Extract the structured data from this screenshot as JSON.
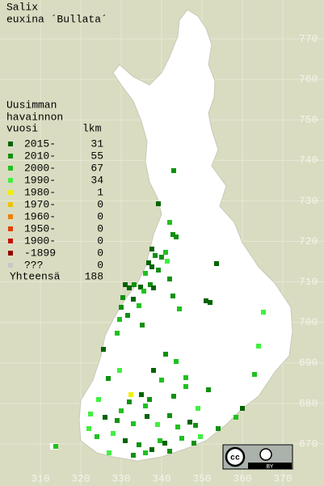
{
  "title": [
    "Salix",
    "euxina ´Bullata´"
  ],
  "legend": {
    "header": [
      "Uusimman",
      "havainnon"
    ],
    "col_year": "vuosi",
    "col_count": "lkm",
    "rows": [
      {
        "label": "2015-",
        "count": 31,
        "color": "#006400"
      },
      {
        "label": "2010-",
        "count": 55,
        "color": "#109010"
      },
      {
        "label": "2000-",
        "count": 67,
        "color": "#20c020"
      },
      {
        "label": "1990-",
        "count": 34,
        "color": "#40f040"
      },
      {
        "label": "1980-",
        "count": 1,
        "color": "#f0f000"
      },
      {
        "label": "1970-",
        "count": 0,
        "color": "#f0c000"
      },
      {
        "label": "1960-",
        "count": 0,
        "color": "#f08000"
      },
      {
        "label": "1950-",
        "count": 0,
        "color": "#e04000"
      },
      {
        "label": "1900-",
        "count": 0,
        "color": "#c01000"
      },
      {
        "label": "-1899",
        "count": 0,
        "color": "#900000"
      },
      {
        "label": "???",
        "count": 0,
        "color": "#c8c8c8"
      }
    ],
    "total_label": "Yhteensä",
    "total": 188
  },
  "map": {
    "xticks": [
      310,
      320,
      330,
      340,
      350,
      360,
      370
    ],
    "yticks": [
      770,
      760,
      750,
      740,
      730,
      720,
      710,
      700,
      690,
      680,
      670
    ]
  },
  "license": {
    "cc": "cc",
    "by": "BY"
  }
}
